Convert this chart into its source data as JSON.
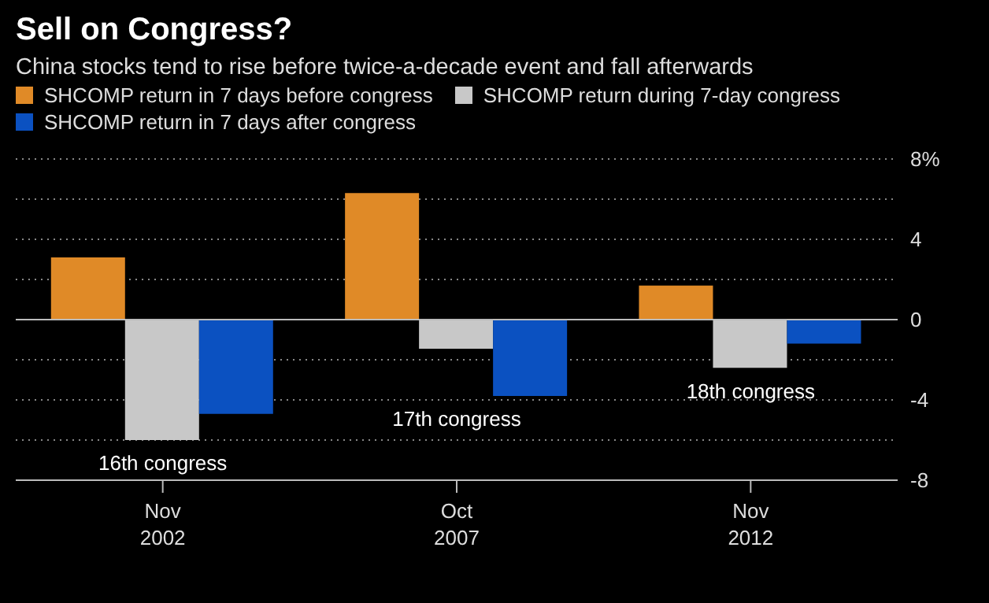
{
  "chart_data": {
    "type": "bar",
    "title": "Sell on Congress?",
    "subtitle": "China stocks tend to rise before twice-a-decade event and fall afterwards",
    "categories": [
      "Nov 2002",
      "Oct 2007",
      "Nov 2012"
    ],
    "series": [
      {
        "name": "SHCOMP return in 7 days before congress",
        "color": "#e08a27",
        "values": [
          3.1,
          6.3,
          1.7
        ]
      },
      {
        "name": "SHCOMP return during 7-day congress",
        "color": "#c8c8c8",
        "values": [
          -6.0,
          -1.45,
          -2.4
        ]
      },
      {
        "name": "SHCOMP return in 7 days after congress",
        "color": "#0b51c1",
        "values": [
          -4.7,
          -3.8,
          -1.2
        ]
      }
    ],
    "ylim": [
      -8,
      8
    ],
    "yticks": [
      {
        "value": 8,
        "label": "8%"
      },
      {
        "value": 6,
        "label": null
      },
      4,
      {
        "value": 2,
        "label": null
      },
      0,
      {
        "value": -2,
        "label": null
      },
      -4,
      {
        "value": -6,
        "label": null
      },
      -8
    ],
    "grid": "y",
    "legend": "top left",
    "annotations": [
      "16th congress",
      "17th congress",
      "18th congress"
    ]
  }
}
